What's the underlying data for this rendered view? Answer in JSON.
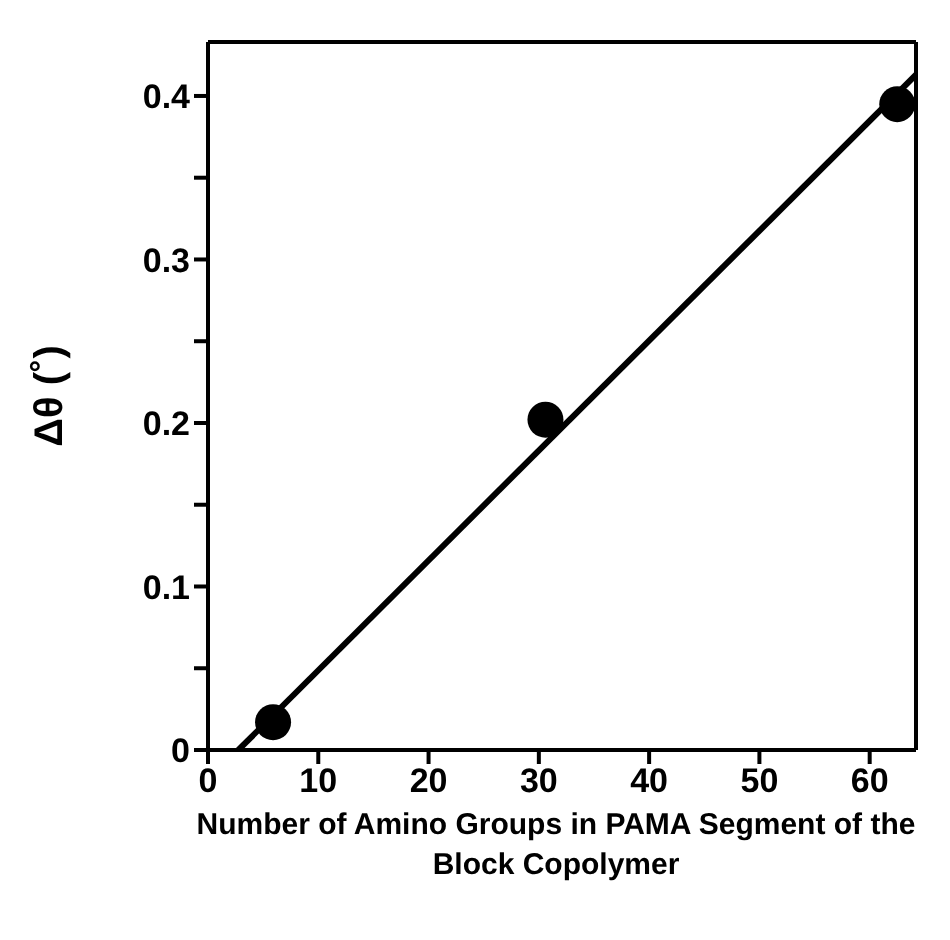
{
  "chart_data": {
    "type": "scatter",
    "xlabel": "Number of Amino Groups in PAMA Segment of the Block Copolymer",
    "ylabel": "Δθ (˚)",
    "series": [
      {
        "color": "#000000",
        "x": [
          5.9,
          30.6,
          62.5
        ],
        "values": [
          0.017,
          0.202,
          0.395
        ],
        "marker": "circle"
      },
      {
        "type": "line",
        "color": "#000000",
        "x": [
          2.75,
          64.2
        ],
        "values": [
          0,
          0.413
        ],
        "marker": "none",
        "line_style": "solid"
      }
    ],
    "xlim": [
      0,
      64.2
    ],
    "xticks": [
      0,
      10,
      20,
      30,
      40,
      50,
      60
    ],
    "ylim": [
      0,
      0.433
    ],
    "yticks": [
      0,
      {
        "value": 0.05,
        "label": null
      },
      0.1,
      {
        "value": 0.15,
        "label": null
      },
      0.2,
      {
        "value": 0.25,
        "label": null
      },
      0.3,
      {
        "value": 0.35,
        "label": null
      },
      0.4
    ],
    "legend": false
  }
}
